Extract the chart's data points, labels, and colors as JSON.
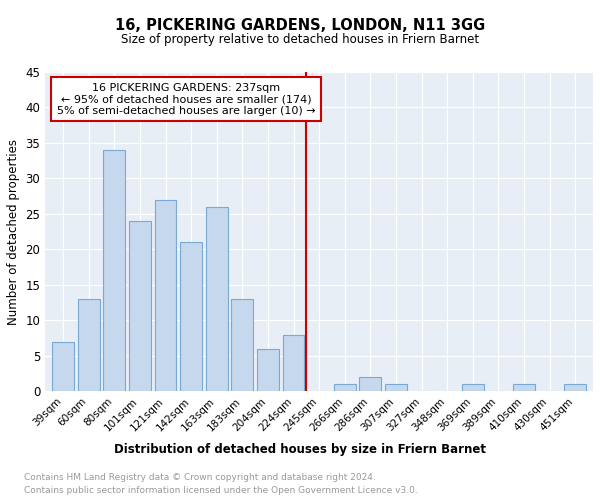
{
  "title": "16, PICKERING GARDENS, LONDON, N11 3GG",
  "subtitle": "Size of property relative to detached houses in Friern Barnet",
  "xlabel": "Distribution of detached houses by size in Friern Barnet",
  "ylabel": "Number of detached properties",
  "categories": [
    "39sqm",
    "60sqm",
    "80sqm",
    "101sqm",
    "121sqm",
    "142sqm",
    "163sqm",
    "183sqm",
    "204sqm",
    "224sqm",
    "245sqm",
    "266sqm",
    "286sqm",
    "307sqm",
    "327sqm",
    "348sqm",
    "369sqm",
    "389sqm",
    "410sqm",
    "430sqm",
    "451sqm"
  ],
  "values": [
    7,
    13,
    34,
    24,
    27,
    21,
    26,
    13,
    6,
    8,
    0,
    1,
    2,
    1,
    0,
    0,
    1,
    0,
    1,
    0,
    1
  ],
  "bar_color": "#c5d8ee",
  "bar_edge_color": "#7aaad4",
  "vline_color": "#cc0000",
  "annotation_title": "16 PICKERING GARDENS: 237sqm",
  "annotation_line1": "← 95% of detached houses are smaller (174)",
  "annotation_line2": "5% of semi-detached houses are larger (10) →",
  "annotation_box_color": "#cc0000",
  "ylim": [
    0,
    45
  ],
  "yticks": [
    0,
    5,
    10,
    15,
    20,
    25,
    30,
    35,
    40,
    45
  ],
  "footnote1": "Contains HM Land Registry data © Crown copyright and database right 2024.",
  "footnote2": "Contains public sector information licensed under the Open Government Licence v3.0.",
  "plot_bg_color": "#e8eef5",
  "grid_color": "#ffffff"
}
